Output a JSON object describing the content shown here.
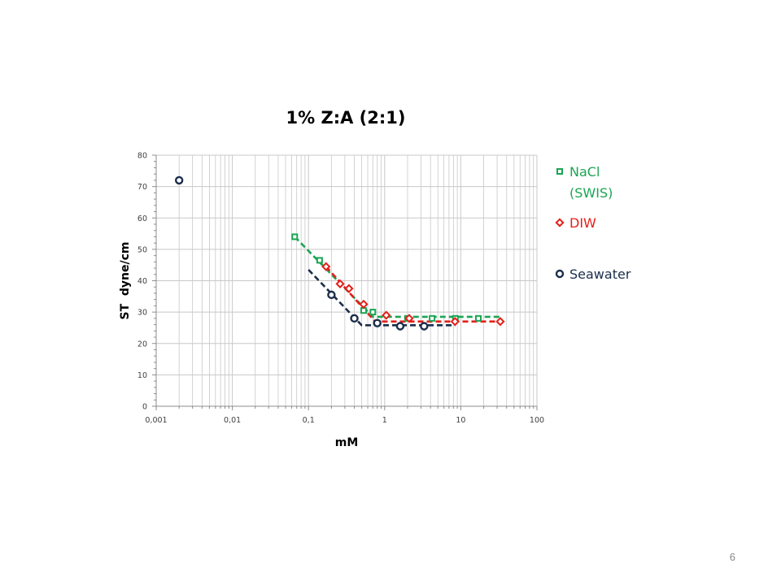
{
  "slide": {
    "page_number": "6"
  },
  "colors": {
    "nacl": "#1aa553",
    "diw": "#e32019",
    "seawater": "#1b2e4b",
    "grid": "#c8c8c8",
    "axis": "#8c8c8c"
  },
  "chart_data": {
    "type": "scatter",
    "title": "1% Z:A (2:1)",
    "xlabel": "mM",
    "ylabel": "ST  dyne/cm",
    "x_scale": "log",
    "xlim": [
      0.001,
      100
    ],
    "ylim": [
      0,
      80
    ],
    "x_ticks": [
      "0,001",
      "0,01",
      "0,1",
      "1",
      "10",
      "100"
    ],
    "y_ticks": [
      "0",
      "10",
      "20",
      "30",
      "40",
      "50",
      "60",
      "70",
      "80"
    ],
    "grid": true,
    "legend_position": "right",
    "series": [
      {
        "name": "NaCl\n(SWIS)",
        "marker": "square",
        "color": "#1aa553",
        "points": [
          [
            0.066,
            54
          ],
          [
            0.14,
            46.5
          ],
          [
            0.53,
            30.5
          ],
          [
            0.7,
            30
          ],
          [
            2.0,
            28
          ],
          [
            4.2,
            28
          ],
          [
            8.5,
            28
          ],
          [
            17,
            28
          ]
        ],
        "trendline": [
          [
            0.066,
            54
          ],
          [
            0.7,
            28.5
          ],
          [
            33,
            28.5
          ]
        ]
      },
      {
        "name": "DIW",
        "marker": "diamond",
        "color": "#e32019",
        "points": [
          [
            0.17,
            44.5
          ],
          [
            0.26,
            39
          ],
          [
            0.34,
            37.5
          ],
          [
            0.53,
            32.5
          ],
          [
            1.05,
            29
          ],
          [
            2.1,
            28
          ],
          [
            8.4,
            27
          ],
          [
            33,
            27
          ]
        ],
        "trendline": [
          [
            0.17,
            44.5
          ],
          [
            0.75,
            27
          ],
          [
            33,
            27
          ]
        ]
      },
      {
        "name": "Seawater",
        "marker": "circle",
        "color": "#1b2e4b",
        "points": [
          [
            0.002,
            72
          ],
          [
            0.2,
            35.5
          ],
          [
            0.4,
            28
          ],
          [
            0.8,
            26.5
          ],
          [
            1.6,
            25.5
          ],
          [
            3.3,
            25.5
          ]
        ],
        "trendline": [
          [
            0.1,
            43.5
          ],
          [
            0.5,
            25.8
          ],
          [
            8.5,
            25.8
          ]
        ]
      }
    ]
  }
}
